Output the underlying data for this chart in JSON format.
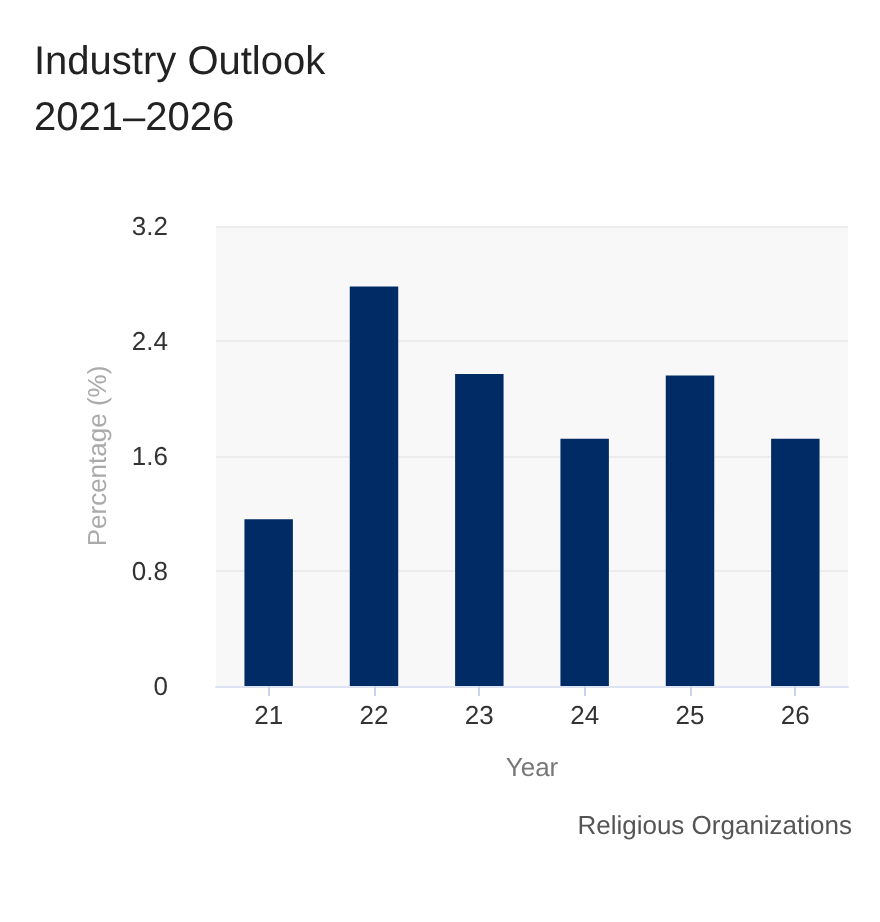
{
  "chart_data": {
    "type": "bar",
    "title": "Industry Outlook\n2021–2026",
    "categories": [
      "21",
      "22",
      "23",
      "24",
      "25",
      "26"
    ],
    "values": [
      1.16,
      2.78,
      2.17,
      1.72,
      2.16,
      1.72
    ],
    "color": "#002b64",
    "xlabel": "Year",
    "ylabel": "Percentage (%)",
    "ylim": [
      0,
      3.2
    ],
    "yticks": [
      0,
      0.8,
      1.6,
      2.4,
      3.2
    ],
    "grid": "y",
    "annotations": [
      "Religious Organizations"
    ]
  }
}
